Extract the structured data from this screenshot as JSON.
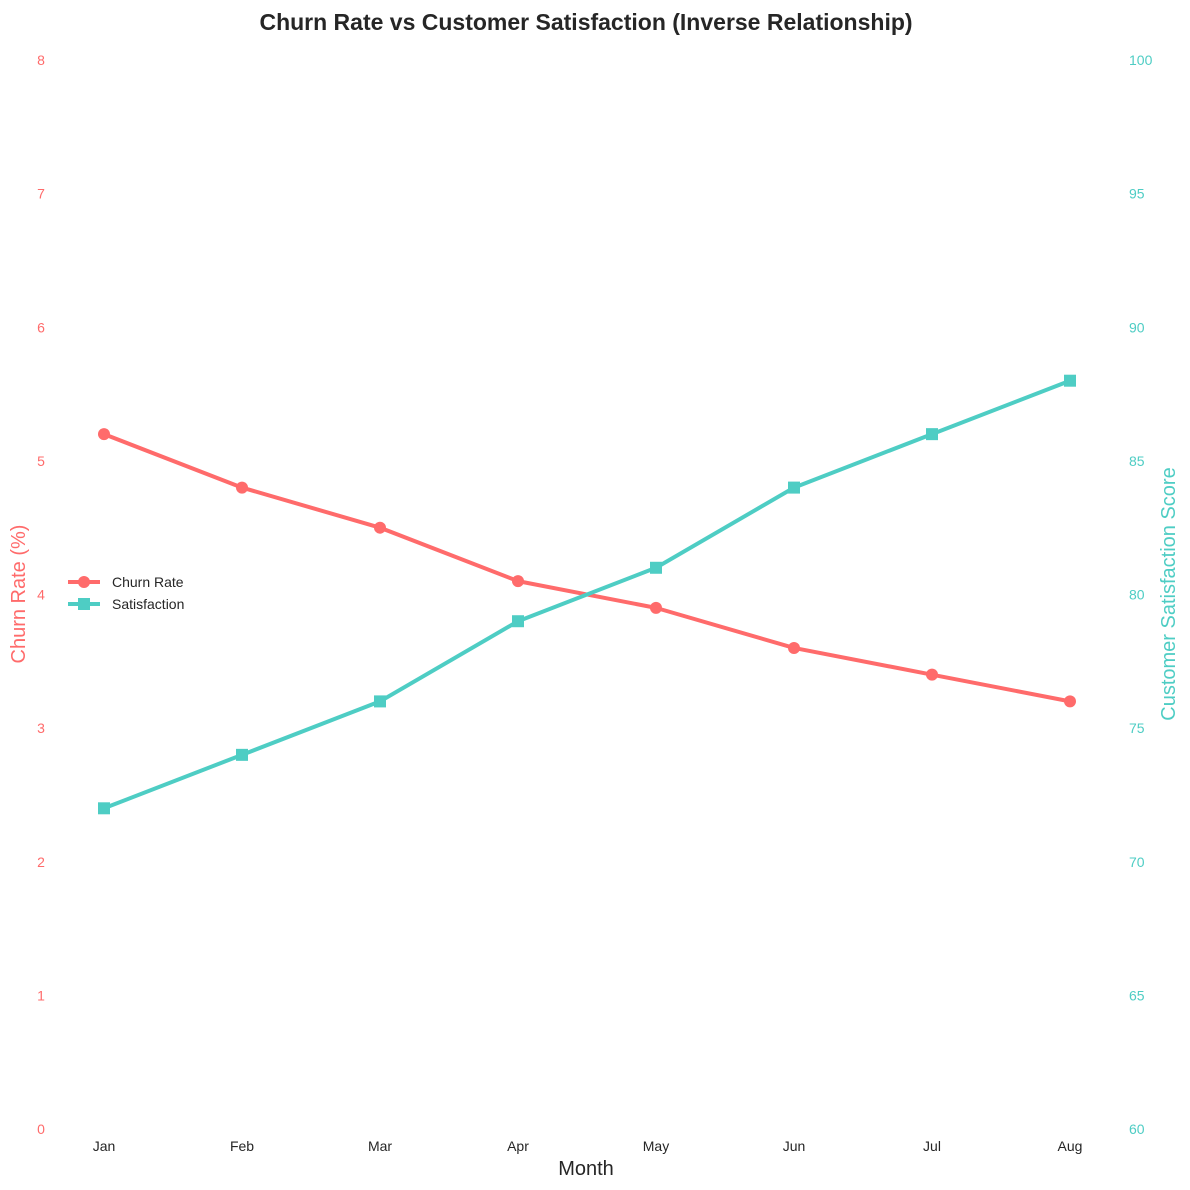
{
  "colors": {
    "churn": "#ff6b6b",
    "satisfaction": "#4ecdc4",
    "text": "#262626"
  },
  "chart_data": {
    "type": "line",
    "title": "Churn Rate vs Customer Satisfaction (Inverse Relationship)",
    "xlabel": "Month",
    "ylabel_left": "Churn Rate (%)",
    "ylabel_right": "Customer Satisfaction Score",
    "categories": [
      "Jan",
      "Feb",
      "Mar",
      "Apr",
      "May",
      "Jun",
      "Jul",
      "Aug"
    ],
    "ylim_left": [
      0,
      8
    ],
    "ylim_right": [
      60,
      100
    ],
    "yticks_left": [
      "0",
      "1",
      "2",
      "3",
      "4",
      "5",
      "6",
      "7",
      "8"
    ],
    "yticks_right": [
      "60",
      "65",
      "70",
      "75",
      "80",
      "85",
      "90",
      "95",
      "100"
    ],
    "grid": false,
    "legend_position": "center-left",
    "series": [
      {
        "name": "Churn Rate",
        "axis": "left",
        "marker": "circle",
        "values": [
          5.2,
          4.8,
          4.5,
          4.1,
          3.9,
          3.6,
          3.4,
          3.2
        ]
      },
      {
        "name": "Satisfaction",
        "axis": "right",
        "marker": "square",
        "values": [
          72,
          74,
          76,
          79,
          81,
          84,
          86,
          88
        ]
      }
    ]
  }
}
